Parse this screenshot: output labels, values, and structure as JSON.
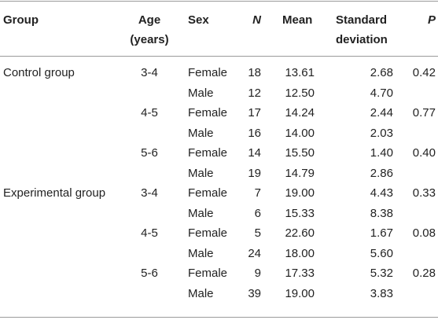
{
  "headers": {
    "group": "Group",
    "age_line1": "Age",
    "age_line2": "(years)",
    "sex": "Sex",
    "n": "N",
    "mean": "Mean",
    "sd_line1": "Standard",
    "sd_line2": "deviation",
    "p": "P"
  },
  "rows": [
    {
      "group": "Control group",
      "age": "3-4",
      "sex": "Female",
      "n": "18",
      "mean": "13.61",
      "sd": "2.68",
      "p": "0.42"
    },
    {
      "group": "",
      "age": "",
      "sex": "Male",
      "n": "12",
      "mean": "12.50",
      "sd": "4.70",
      "p": ""
    },
    {
      "group": "",
      "age": "4-5",
      "sex": "Female",
      "n": "17",
      "mean": "14.24",
      "sd": "2.44",
      "p": "0.77"
    },
    {
      "group": "",
      "age": "",
      "sex": "Male",
      "n": "16",
      "mean": "14.00",
      "sd": "2.03",
      "p": ""
    },
    {
      "group": "",
      "age": "5-6",
      "sex": "Female",
      "n": "14",
      "mean": "15.50",
      "sd": "1.40",
      "p": "0.40"
    },
    {
      "group": "",
      "age": "",
      "sex": "Male",
      "n": "19",
      "mean": "14.79",
      "sd": "2.86",
      "p": ""
    },
    {
      "group": "Experimental group",
      "age": "3-4",
      "sex": "Female",
      "n": "7",
      "mean": "19.00",
      "sd": "4.43",
      "p": "0.33"
    },
    {
      "group": "",
      "age": "",
      "sex": "Male",
      "n": "6",
      "mean": "15.33",
      "sd": "8.38",
      "p": ""
    },
    {
      "group": "",
      "age": "4-5",
      "sex": "Female",
      "n": "5",
      "mean": "22.60",
      "sd": "1.67",
      "p": "0.08"
    },
    {
      "group": "",
      "age": "",
      "sex": "Male",
      "n": "24",
      "mean": "18.00",
      "sd": "5.60",
      "p": ""
    },
    {
      "group": "",
      "age": "5-6",
      "sex": "Female",
      "n": "9",
      "mean": "17.33",
      "sd": "5.32",
      "p": "0.28"
    },
    {
      "group": "",
      "age": "",
      "sex": "Male",
      "n": "39",
      "mean": "19.00",
      "sd": "3.83",
      "p": ""
    }
  ]
}
